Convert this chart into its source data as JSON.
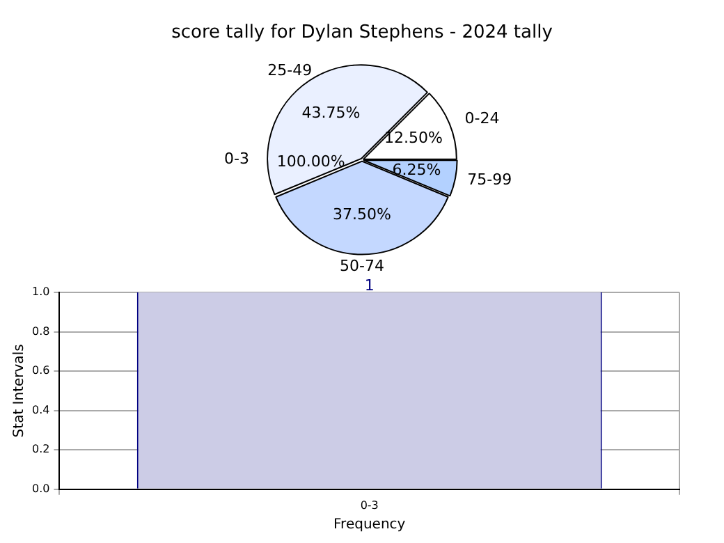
{
  "chart_data": [
    {
      "type": "pie",
      "title": "score tally for Dylan Stephens - 2024 tally",
      "categories": [
        "75-99",
        "50-74",
        "25-49",
        "0-24"
      ],
      "values": [
        6.25,
        37.5,
        43.75,
        12.5
      ],
      "colors": [
        "#b3d1ff",
        "#c4d8ff",
        "#eaf0ff",
        "#ffffff"
      ],
      "value_labels": [
        "6.25%",
        "37.50%",
        "43.75%",
        "12.50%"
      ],
      "annotations": [
        "0-3",
        "100.00%"
      ]
    },
    {
      "type": "bar",
      "categories": [
        "0-3"
      ],
      "values": [
        1
      ],
      "color": "#ccccE6",
      "ylim": [
        0,
        1
      ],
      "yticks": [
        {
          "value": 0,
          "label": "0.0"
        },
        {
          "value": 0.2,
          "label": "0.2"
        },
        {
          "value": 0.4,
          "label": "0.4"
        },
        {
          "value": 0.6,
          "label": "0.6"
        },
        {
          "value": 0.8,
          "label": "0.8"
        },
        {
          "value": 1,
          "label": "1.0"
        }
      ],
      "xlabel": "Frequency",
      "ylabel": "Stat Intervals",
      "grid": true,
      "data_labels": true
    }
  ]
}
